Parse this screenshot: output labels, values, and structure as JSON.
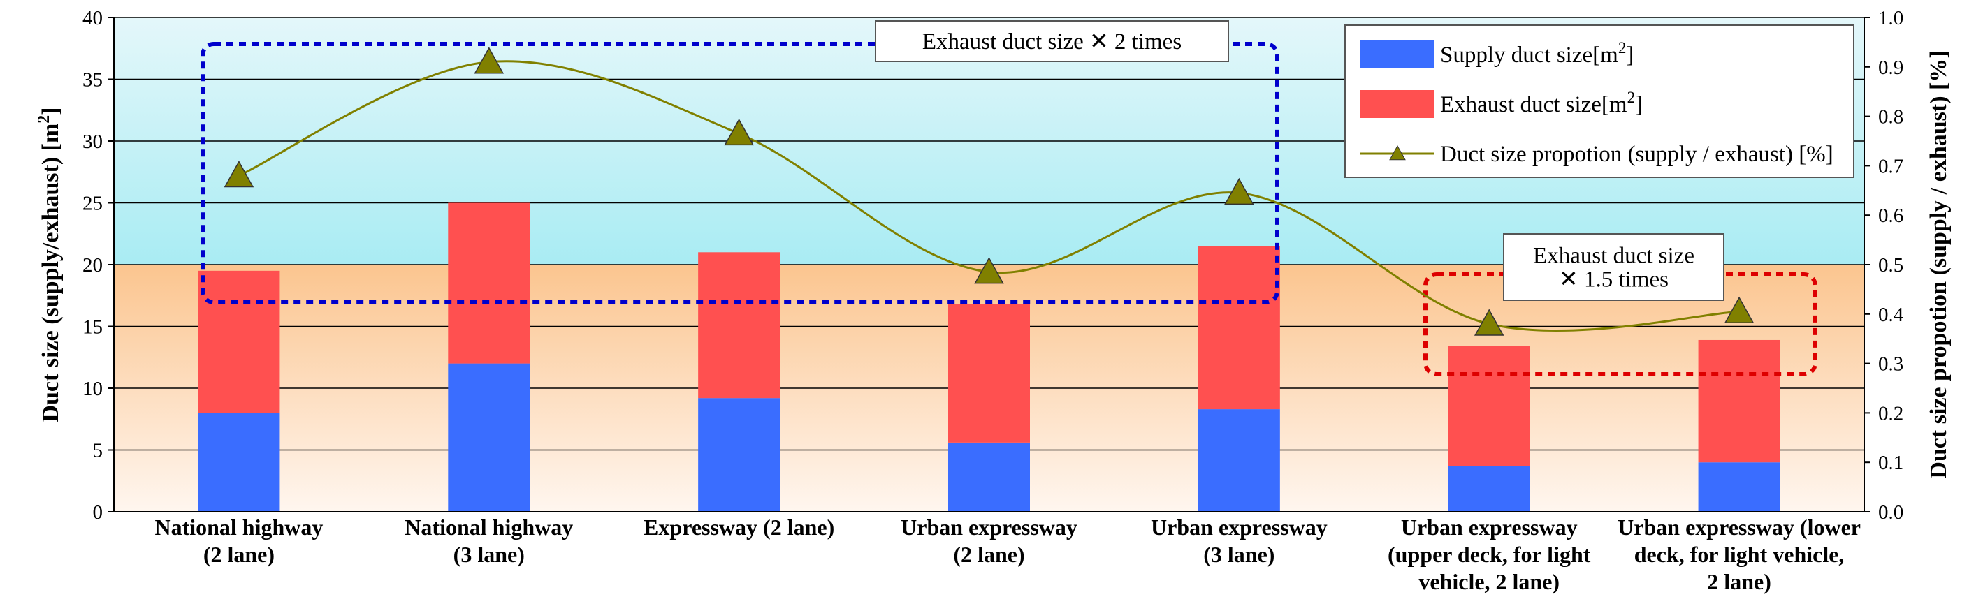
{
  "chart_data": {
    "type": "bar",
    "stacked": true,
    "categories": [
      [
        "National highway",
        "(2 lane)"
      ],
      [
        "National highway",
        "(3 lane)"
      ],
      [
        "Expressway (2 lane)"
      ],
      [
        "Urban expressway",
        "(2 lane)"
      ],
      [
        "Urban expressway",
        "(3 lane)"
      ],
      [
        "Urban expressway",
        "(upper deck, for light",
        "vehicle, 2 lane)"
      ],
      [
        "Urban expressway (lower",
        "deck, for light vehicle,",
        "2 lane)"
      ]
    ],
    "series": [
      {
        "name": "Supply duct size[m2]",
        "kind": "bar",
        "color": "#3a6dff",
        "values": [
          8.0,
          12.0,
          9.2,
          5.6,
          8.3,
          3.7,
          4.0
        ]
      },
      {
        "name": "Exhaust duct size[m2]",
        "kind": "bar",
        "color": "#ff5050",
        "values": [
          11.5,
          13.0,
          11.8,
          11.2,
          13.2,
          9.7,
          9.9
        ]
      },
      {
        "name": "Duct size propotion (supply / exhaust)  [%]",
        "kind": "line",
        "axis": "right",
        "color": "#808000",
        "marker": "triangle",
        "values": [
          0.68,
          0.91,
          0.765,
          0.485,
          0.645,
          0.38,
          0.405
        ]
      }
    ],
    "ylabel": "Duct size (supply/exhaust) [m2]",
    "ylim": [
      0,
      40
    ],
    "yticks": [
      "0",
      "5",
      "10",
      "15",
      "20",
      "25",
      "30",
      "35",
      "40"
    ],
    "y2label": "Duct size propotion (supply / exhaust) [%]",
    "y2lim": [
      0,
      1.0
    ],
    "y2ticks": [
      "0.0",
      "0.1",
      "0.2",
      "0.3",
      "0.4",
      "0.5",
      "0.6",
      "0.7",
      "0.8",
      "0.9",
      "1.0"
    ],
    "grid": true,
    "legend_position": "top-right",
    "background_bands": [
      {
        "from": 0,
        "to": 20,
        "color_top": "#fbc58f",
        "color_bottom": "#fff6ef"
      },
      {
        "from": 20,
        "to": 40,
        "color_top": "#e4f7fa",
        "color_bottom": "#a9ecf3"
      }
    ],
    "annotations": [
      {
        "text": [
          "Exhaust duct size ✕ 2 times"
        ],
        "color": "#0000cc",
        "covers_categories": [
          0,
          4
        ]
      },
      {
        "text": [
          "Exhaust duct size",
          "✕ 1.5 times"
        ],
        "color": "#dd0000",
        "covers_categories": [
          5,
          6
        ]
      }
    ]
  }
}
